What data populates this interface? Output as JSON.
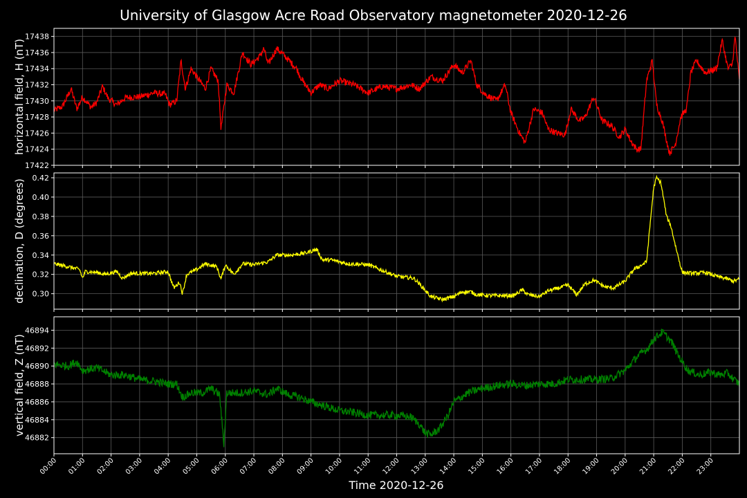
{
  "chart_data": {
    "type": "line",
    "title": "University of Glasgow Acre Road Observatory magnetometer 2020-12-26",
    "xlabel": "Time 2020-12-26",
    "x_ticks": [
      "00:00",
      "01:00",
      "02:00",
      "03:00",
      "04:00",
      "05:00",
      "06:00",
      "07:00",
      "08:00",
      "09:00",
      "10:00",
      "11:00",
      "12:00",
      "13:00",
      "14:00",
      "15:00",
      "16:00",
      "17:00",
      "18:00",
      "19:00",
      "20:00",
      "21:00",
      "22:00",
      "23:00"
    ],
    "x_range_hours": [
      0,
      24
    ],
    "grid": true,
    "panels": [
      {
        "name": "H",
        "ylabel": "horizontal field, H (nT)",
        "color": "#ff0000",
        "ylim": [
          17422,
          17439
        ],
        "yticks": [
          17422,
          17424,
          17426,
          17428,
          17430,
          17432,
          17434,
          17436,
          17438
        ],
        "noise": 0.4,
        "series": [
          [
            0,
            17428.8
          ],
          [
            0.3,
            17429.3
          ],
          [
            0.6,
            17431.5
          ],
          [
            0.8,
            17429.0
          ],
          [
            1.0,
            17430.5
          ],
          [
            1.3,
            17429.2
          ],
          [
            1.5,
            17429.8
          ],
          [
            1.7,
            17431.8
          ],
          [
            1.9,
            17430.3
          ],
          [
            2.2,
            17429.5
          ],
          [
            2.5,
            17430.4
          ],
          [
            3.0,
            17430.5
          ],
          [
            3.5,
            17431.0
          ],
          [
            3.9,
            17430.8
          ],
          [
            4.05,
            17429.5
          ],
          [
            4.3,
            17430.0
          ],
          [
            4.45,
            17435.0
          ],
          [
            4.6,
            17431.5
          ],
          [
            4.8,
            17434.0
          ],
          [
            5.0,
            17433.0
          ],
          [
            5.3,
            17431.5
          ],
          [
            5.5,
            17434.0
          ],
          [
            5.75,
            17432.5
          ],
          [
            5.85,
            17426.5
          ],
          [
            6.05,
            17432.0
          ],
          [
            6.3,
            17431.0
          ],
          [
            6.6,
            17436.0
          ],
          [
            6.9,
            17434.5
          ],
          [
            7.2,
            17435.5
          ],
          [
            7.35,
            17436.5
          ],
          [
            7.5,
            17434.5
          ],
          [
            7.8,
            17436.5
          ],
          [
            8.1,
            17435.5
          ],
          [
            8.5,
            17434.0
          ],
          [
            8.7,
            17432.5
          ],
          [
            9.0,
            17431.0
          ],
          [
            9.3,
            17432.0
          ],
          [
            9.6,
            17431.5
          ],
          [
            10.0,
            17432.5
          ],
          [
            10.5,
            17432.0
          ],
          [
            11.0,
            17431.0
          ],
          [
            11.5,
            17431.8
          ],
          [
            12.0,
            17431.5
          ],
          [
            12.5,
            17432.0
          ],
          [
            12.8,
            17431.5
          ],
          [
            13.2,
            17433.0
          ],
          [
            13.6,
            17432.5
          ],
          [
            14.0,
            17434.5
          ],
          [
            14.3,
            17433.5
          ],
          [
            14.6,
            17435.0
          ],
          [
            14.8,
            17432.0
          ],
          [
            15.1,
            17430.8
          ],
          [
            15.5,
            17430.0
          ],
          [
            15.8,
            17432.0
          ],
          [
            16.0,
            17428.5
          ],
          [
            16.3,
            17426.0
          ],
          [
            16.5,
            17424.8
          ],
          [
            16.8,
            17429.0
          ],
          [
            17.1,
            17428.5
          ],
          [
            17.3,
            17426.5
          ],
          [
            17.6,
            17426.0
          ],
          [
            17.9,
            17425.8
          ],
          [
            18.1,
            17429.0
          ],
          [
            18.4,
            17427.5
          ],
          [
            18.6,
            17428.0
          ],
          [
            18.9,
            17430.5
          ],
          [
            19.2,
            17427.5
          ],
          [
            19.5,
            17427.0
          ],
          [
            19.8,
            17425.5
          ],
          [
            20.0,
            17426.5
          ],
          [
            20.2,
            17425.0
          ],
          [
            20.4,
            17424.0
          ],
          [
            20.55,
            17424.0
          ],
          [
            20.75,
            17432.5
          ],
          [
            20.95,
            17435.0
          ],
          [
            21.1,
            17429.5
          ],
          [
            21.3,
            17427.5
          ],
          [
            21.55,
            17423.5
          ],
          [
            21.75,
            17424.5
          ],
          [
            21.95,
            17428.0
          ],
          [
            22.15,
            17429.0
          ],
          [
            22.3,
            17433.5
          ],
          [
            22.5,
            17435.0
          ],
          [
            22.8,
            17433.5
          ],
          [
            23.2,
            17434.0
          ],
          [
            23.4,
            17437.5
          ],
          [
            23.6,
            17434.0
          ],
          [
            23.75,
            17434.5
          ],
          [
            23.85,
            17438.0
          ],
          [
            24.0,
            17432.5
          ]
        ]
      },
      {
        "name": "D",
        "ylabel": "declination, D (degrees)",
        "color": "#ffff00",
        "ylim": [
          0.284,
          0.425
        ],
        "yticks": [
          0.3,
          0.32,
          0.34,
          0.36,
          0.38,
          0.4,
          0.42
        ],
        "noise": 0.002,
        "series": [
          [
            0,
            0.331
          ],
          [
            0.5,
            0.328
          ],
          [
            0.9,
            0.325
          ],
          [
            1.0,
            0.316
          ],
          [
            1.1,
            0.323
          ],
          [
            1.5,
            0.322
          ],
          [
            1.8,
            0.32
          ],
          [
            2.2,
            0.323
          ],
          [
            2.4,
            0.316
          ],
          [
            2.7,
            0.321
          ],
          [
            3.5,
            0.321
          ],
          [
            4.0,
            0.323
          ],
          [
            4.1,
            0.314
          ],
          [
            4.2,
            0.306
          ],
          [
            4.4,
            0.312
          ],
          [
            4.5,
            0.3
          ],
          [
            4.65,
            0.32
          ],
          [
            5.0,
            0.325
          ],
          [
            5.3,
            0.331
          ],
          [
            5.7,
            0.328
          ],
          [
            5.85,
            0.315
          ],
          [
            6.0,
            0.33
          ],
          [
            6.3,
            0.32
          ],
          [
            6.6,
            0.331
          ],
          [
            7.0,
            0.33
          ],
          [
            7.5,
            0.333
          ],
          [
            7.8,
            0.34
          ],
          [
            8.3,
            0.34
          ],
          [
            8.8,
            0.342
          ],
          [
            9.2,
            0.346
          ],
          [
            9.4,
            0.335
          ],
          [
            9.7,
            0.335
          ],
          [
            10.3,
            0.331
          ],
          [
            11.0,
            0.33
          ],
          [
            11.5,
            0.324
          ],
          [
            12.0,
            0.318
          ],
          [
            12.6,
            0.316
          ],
          [
            12.8,
            0.31
          ],
          [
            13.2,
            0.297
          ],
          [
            13.6,
            0.294
          ],
          [
            14.0,
            0.297
          ],
          [
            14.3,
            0.302
          ],
          [
            14.6,
            0.302
          ],
          [
            14.8,
            0.299
          ],
          [
            15.3,
            0.298
          ],
          [
            15.7,
            0.298
          ],
          [
            16.1,
            0.298
          ],
          [
            16.4,
            0.304
          ],
          [
            16.6,
            0.299
          ],
          [
            17.0,
            0.297
          ],
          [
            17.3,
            0.303
          ],
          [
            17.7,
            0.306
          ],
          [
            18.0,
            0.309
          ],
          [
            18.3,
            0.299
          ],
          [
            18.6,
            0.31
          ],
          [
            18.9,
            0.314
          ],
          [
            19.3,
            0.307
          ],
          [
            19.6,
            0.306
          ],
          [
            20.0,
            0.313
          ],
          [
            20.3,
            0.325
          ],
          [
            20.6,
            0.33
          ],
          [
            20.75,
            0.333
          ],
          [
            20.9,
            0.38
          ],
          [
            21.0,
            0.41
          ],
          [
            21.1,
            0.42
          ],
          [
            21.25,
            0.415
          ],
          [
            21.45,
            0.38
          ],
          [
            21.6,
            0.37
          ],
          [
            21.8,
            0.345
          ],
          [
            22.0,
            0.322
          ],
          [
            22.4,
            0.321
          ],
          [
            22.8,
            0.322
          ],
          [
            23.2,
            0.318
          ],
          [
            23.5,
            0.316
          ],
          [
            23.8,
            0.313
          ],
          [
            24.0,
            0.315
          ]
        ]
      },
      {
        "name": "Z",
        "ylabel": "vertical field, Z (nT)",
        "color": "#008000",
        "ylim": [
          46880.2,
          46895.5
        ],
        "yticks": [
          46882,
          46884,
          46886,
          46888,
          46890,
          46892,
          46894
        ],
        "noise": 0.45,
        "series": [
          [
            0,
            46890.2
          ],
          [
            0.5,
            46890.0
          ],
          [
            0.8,
            46890.5
          ],
          [
            1.0,
            46889.5
          ],
          [
            1.5,
            46889.8
          ],
          [
            2.0,
            46889.0
          ],
          [
            2.5,
            46889.0
          ],
          [
            3.0,
            46888.5
          ],
          [
            3.5,
            46888.3
          ],
          [
            4.0,
            46888.0
          ],
          [
            4.3,
            46888.0
          ],
          [
            4.5,
            46886.5
          ],
          [
            4.8,
            46887.0
          ],
          [
            5.2,
            46887.0
          ],
          [
            5.5,
            46887.5
          ],
          [
            5.8,
            46886.8
          ],
          [
            5.95,
            46881.2
          ],
          [
            6.05,
            46887.0
          ],
          [
            6.5,
            46887.0
          ],
          [
            7.0,
            46887.2
          ],
          [
            7.5,
            46886.8
          ],
          [
            7.8,
            46887.5
          ],
          [
            8.2,
            46886.8
          ],
          [
            8.6,
            46886.5
          ],
          [
            9.0,
            46886.0
          ],
          [
            9.5,
            46885.5
          ],
          [
            10.0,
            46885.0
          ],
          [
            10.5,
            46884.8
          ],
          [
            11.0,
            46884.5
          ],
          [
            11.5,
            46884.5
          ],
          [
            12.0,
            46884.5
          ],
          [
            12.5,
            46884.3
          ],
          [
            12.8,
            46883.5
          ],
          [
            13.0,
            46882.5
          ],
          [
            13.2,
            46882.3
          ],
          [
            13.5,
            46883.0
          ],
          [
            13.8,
            46884.5
          ],
          [
            14.0,
            46886.0
          ],
          [
            14.5,
            46887.0
          ],
          [
            15.0,
            46887.5
          ],
          [
            15.5,
            46887.8
          ],
          [
            16.0,
            46888.0
          ],
          [
            16.5,
            46887.8
          ],
          [
            17.0,
            46888.0
          ],
          [
            17.5,
            46888.0
          ],
          [
            18.0,
            46888.5
          ],
          [
            18.5,
            46888.5
          ],
          [
            19.0,
            46888.5
          ],
          [
            19.5,
            46888.6
          ],
          [
            20.0,
            46889.5
          ],
          [
            20.4,
            46891.0
          ],
          [
            20.8,
            46892.0
          ],
          [
            21.0,
            46893.0
          ],
          [
            21.3,
            46893.8
          ],
          [
            21.6,
            46892.8
          ],
          [
            21.9,
            46891.0
          ],
          [
            22.2,
            46889.5
          ],
          [
            22.6,
            46889.0
          ],
          [
            23.0,
            46889.3
          ],
          [
            23.3,
            46889.0
          ],
          [
            23.6,
            46889.2
          ],
          [
            23.8,
            46888.5
          ],
          [
            24.0,
            46888.0
          ]
        ]
      }
    ]
  }
}
